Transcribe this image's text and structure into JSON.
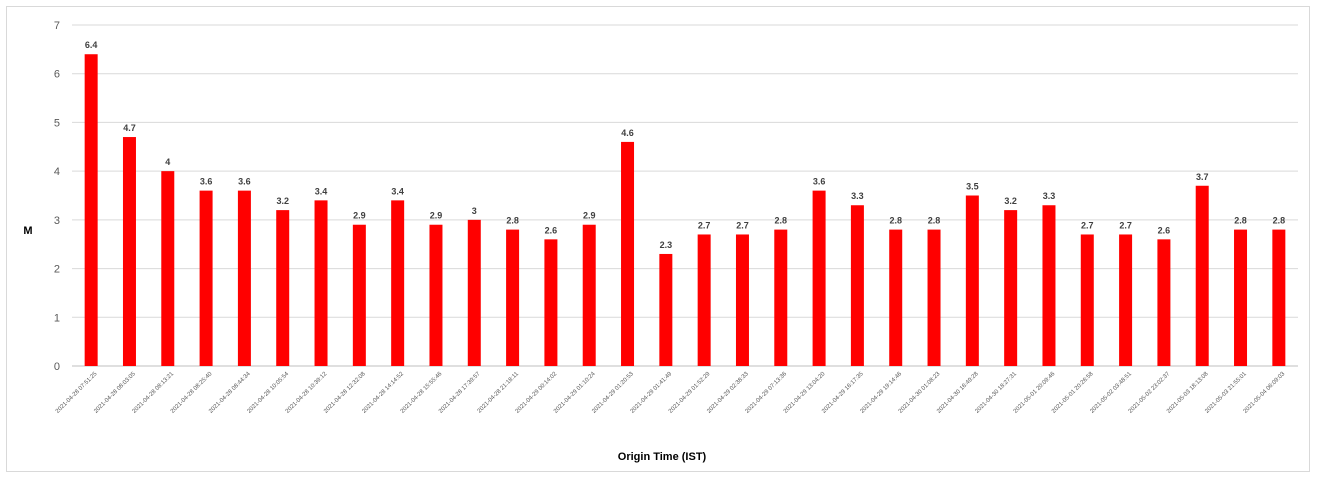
{
  "chart_data": {
    "type": "bar",
    "title": "",
    "xlabel": "Origin Time (IST)",
    "ylabel": "M",
    "ylim": [
      0,
      7
    ],
    "yticks": [
      0,
      1,
      2,
      3,
      4,
      5,
      6,
      7
    ],
    "grid": true,
    "legend": "none",
    "bar_color": "#ff0000",
    "categories": [
      "2021-04-28 07:51:25",
      "2021-04-28 08:03:05",
      "2021-04-28 08:13:21",
      "2021-04-28 08:25:40",
      "2021-04-28 08:44:34",
      "2021-04-28 10:05:54",
      "2021-04-28 10:39:12",
      "2021-04-28 12:32:08",
      "2021-04-28 14:14:52",
      "2021-04-28 15:55:46",
      "2021-04-28 17:39:57",
      "2021-04-28 21:18:11",
      "2021-04-29 00:14:02",
      "2021-04-29 01:10:24",
      "2021-04-29 01:20:53",
      "2021-04-29 01:41:49",
      "2021-04-29 01:52:29",
      "2021-04-29 02:38:33",
      "2021-04-29 07:13:36",
      "2021-04-29 13:04:20",
      "2021-04-29 16:17:35",
      "2021-04-29 19:14:46",
      "2021-04-30 01:08:23",
      "2021-04-30 16:49:28",
      "2021-04-30 18:27:31",
      "2021-05-01 20:09:46",
      "2021-05-01 20:26:58",
      "2021-05-02 03:48:51",
      "2021-05-02 23:02:37",
      "2021-05-03 18:13:08",
      "2021-05-03 21:55:01",
      "2021-05-04 06:09:03"
    ],
    "values": [
      6.4,
      4.7,
      4,
      3.6,
      3.6,
      3.2,
      3.4,
      2.9,
      3.4,
      2.9,
      3,
      2.8,
      2.6,
      2.9,
      4.6,
      2.3,
      2.7,
      2.7,
      2.8,
      3.6,
      3.3,
      2.8,
      2.8,
      3.5,
      3.2,
      3.3,
      2.7,
      2.7,
      2.6,
      3.7,
      2.8,
      2.8
    ]
  }
}
